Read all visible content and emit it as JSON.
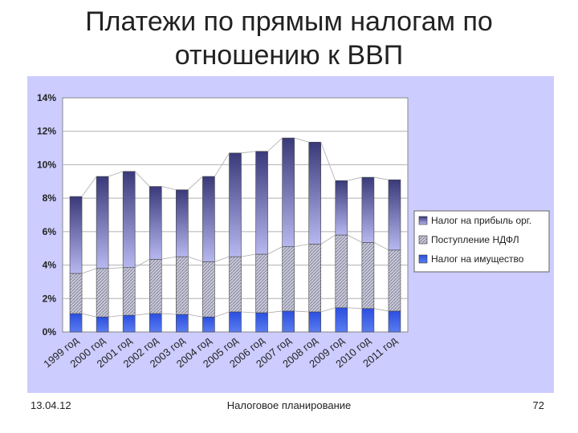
{
  "slide": {
    "title_line1": "Платежи по прямым налогам по",
    "title_line2": "отношению к ВВП",
    "footer_date": "13.04.12",
    "footer_center": "Налоговое планирование",
    "page_number": "72"
  },
  "chart_data": {
    "type": "bar",
    "stacked": true,
    "categories": [
      "1999 год",
      "2000 год",
      "2001 год",
      "2002 год",
      "2003 год",
      "2004 год",
      "2005 год",
      "2006 год",
      "2007 год",
      "2008 год",
      "2009 год",
      "2010 год",
      "2011 год"
    ],
    "series": [
      {
        "name": "Налог на имущество",
        "color": "#3355dd",
        "values": [
          1.1,
          0.9,
          1.0,
          1.1,
          1.05,
          0.9,
          1.2,
          1.15,
          1.25,
          1.2,
          1.45,
          1.4,
          1.25
        ]
      },
      {
        "name": "Поступление НДФЛ",
        "color": "#aaaacc",
        "values": [
          2.4,
          2.9,
          2.85,
          3.25,
          3.45,
          3.3,
          3.3,
          3.5,
          3.85,
          4.05,
          4.35,
          3.95,
          3.65
        ]
      },
      {
        "name": "Налог на прибыль орг.",
        "color": "#6666bb",
        "values": [
          4.6,
          5.5,
          5.75,
          4.35,
          4.0,
          5.1,
          6.2,
          6.15,
          6.5,
          6.1,
          3.25,
          3.9,
          4.2
        ]
      }
    ],
    "yticks": [
      "0%",
      "2%",
      "4%",
      "6%",
      "8%",
      "10%",
      "12%",
      "14%"
    ],
    "ylim": [
      0,
      14
    ],
    "grid": true,
    "legend_position": "right"
  }
}
